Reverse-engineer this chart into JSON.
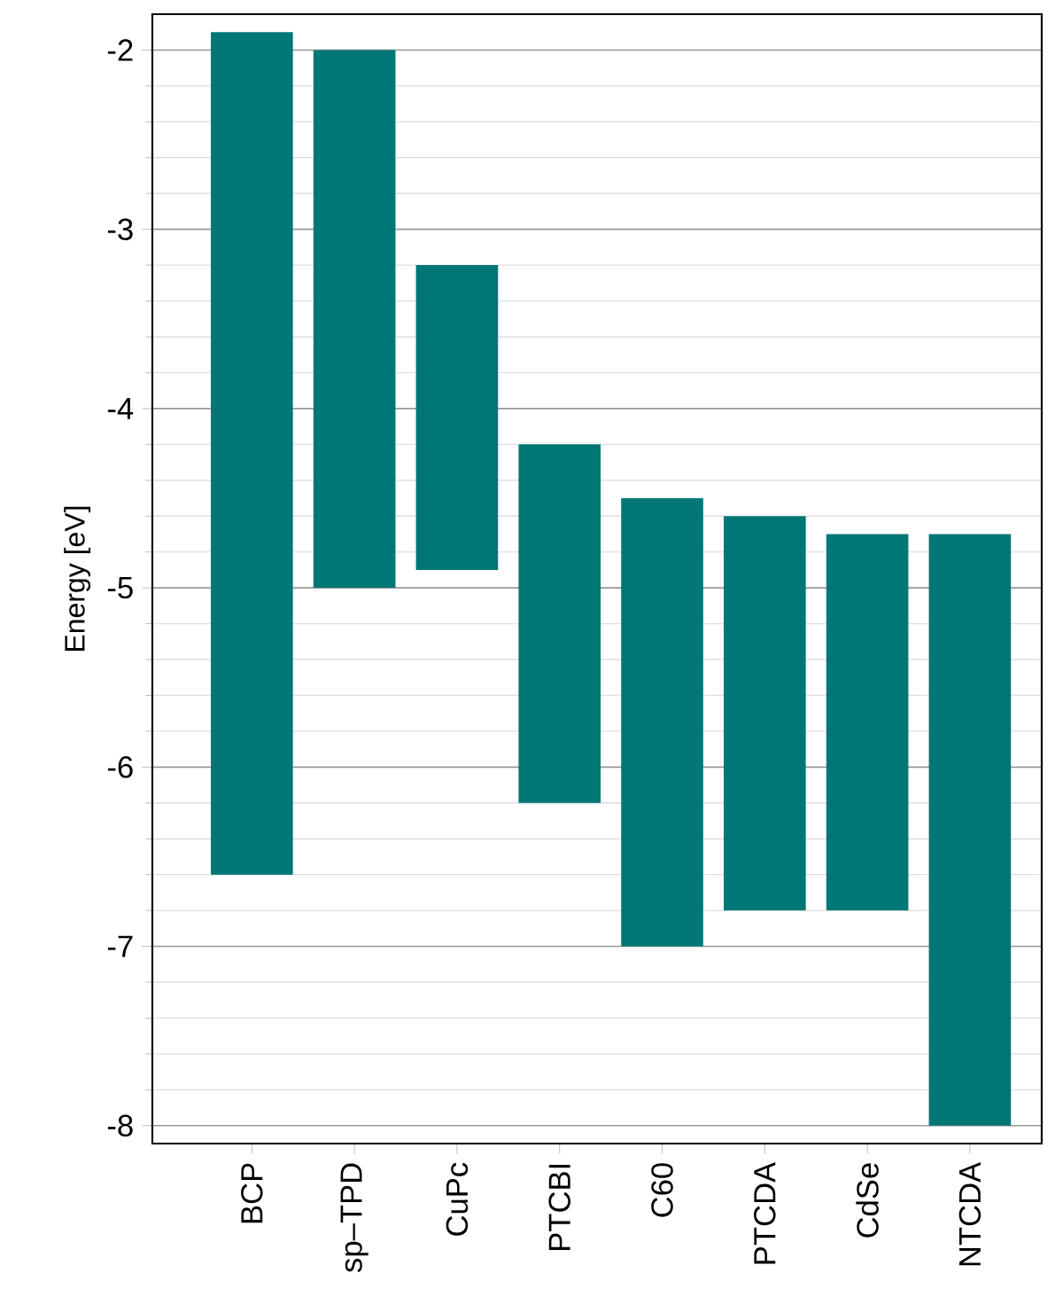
{
  "chart_data": {
    "type": "bar",
    "ylabel": "Energy [eV]",
    "categories": [
      "BCP",
      "sp–TPD",
      "CuPc",
      "PTCBI",
      "C60",
      "PTCDA",
      "CdSe",
      "NTCDA"
    ],
    "base": [
      -6.6,
      -5.0,
      -4.9,
      -6.2,
      -7.0,
      -6.8,
      -6.8,
      -8.0
    ],
    "values": [
      4.7,
      3.0,
      1.7,
      2.0,
      2.5,
      2.2,
      2.1,
      3.3
    ],
    "color": "#007777",
    "ylim": [
      -8.1,
      -1.8
    ],
    "yticks": [
      -8,
      -7,
      -6,
      -5,
      -4,
      -3,
      -2
    ],
    "grid": true
  }
}
